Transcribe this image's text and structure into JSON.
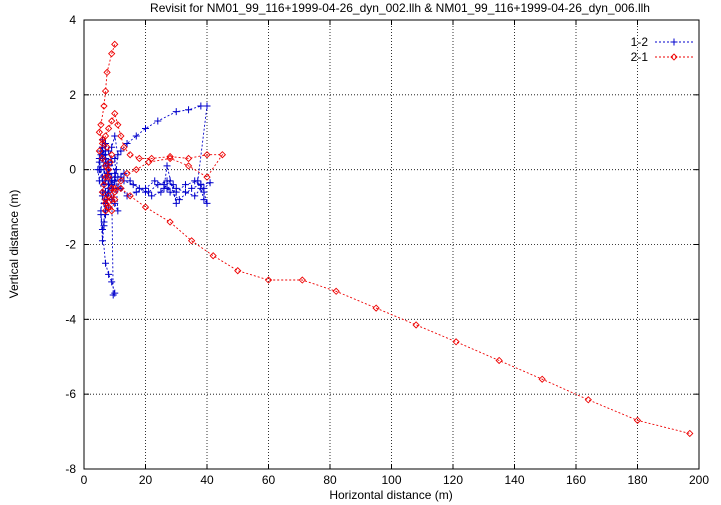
{
  "chart_data": {
    "type": "scatter",
    "title": "Revisit for NM01_99_116+1999-04-26_dyn_002.llh & NM01_99_116+1999-04-26_dyn_006.llh",
    "xlabel": "Horizontal distance (m)",
    "ylabel": "Vertical distance (m)",
    "xlim": [
      0,
      200
    ],
    "ylim": [
      -8,
      4
    ],
    "xticks": [
      0,
      20,
      40,
      60,
      80,
      100,
      120,
      140,
      160,
      180,
      200
    ],
    "yticks": [
      -8,
      -6,
      -4,
      -2,
      0,
      2,
      4
    ],
    "grid": true,
    "legend": "top-right",
    "series": [
      {
        "name": "1-2",
        "color": "#0000cc",
        "marker": "plus",
        "x": [
          5,
          5.5,
          6,
          6.5,
          7,
          7.5,
          8,
          7,
          6.5,
          6,
          5.5,
          7,
          8,
          9,
          10,
          9.5,
          9,
          10,
          11,
          10,
          12,
          14,
          17,
          20,
          24,
          30,
          34,
          38,
          40,
          37,
          33,
          30,
          27,
          29,
          30,
          27,
          26,
          28,
          25,
          22,
          20,
          16,
          13,
          12,
          11,
          9,
          8,
          8.5,
          7,
          6.5,
          6,
          5.5,
          6,
          7,
          8,
          9,
          10,
          11,
          10.5,
          10,
          9.5,
          9,
          8,
          7,
          6,
          5,
          4.5,
          5,
          6,
          7,
          9,
          11,
          13,
          15,
          18,
          21,
          24,
          27,
          30,
          33,
          36,
          38,
          39,
          40,
          39,
          38,
          36,
          39,
          41,
          38,
          35,
          31,
          28,
          26,
          23,
          20,
          17,
          14,
          12,
          10,
          8,
          7.5,
          7,
          6,
          5.5,
          5,
          6,
          7,
          6.5,
          7,
          7.5,
          8,
          7.5,
          7,
          6.5,
          6,
          7,
          8,
          9,
          8,
          7,
          6.5,
          6,
          7,
          8,
          9,
          10,
          9,
          8,
          7,
          6.5,
          6,
          5.5
        ],
        "y": [
          0.2,
          0.0,
          -0.2,
          -0.4,
          -0.6,
          -0.8,
          -1.0,
          -1.2,
          -1.5,
          -1.9,
          -1.2,
          -2.5,
          -2.8,
          -3.0,
          -3.3,
          -3.35,
          -0.5,
          -0.9,
          -1.1,
          0.3,
          0.5,
          0.7,
          0.9,
          1.1,
          1.3,
          1.55,
          1.6,
          1.7,
          1.7,
          -0.3,
          -0.4,
          -0.6,
          -0.5,
          -0.4,
          -0.9,
          0.1,
          -0.5,
          -0.3,
          -0.6,
          -0.7,
          -0.6,
          -0.4,
          -0.3,
          -0.2,
          -0.5,
          -0.8,
          -0.6,
          -0.3,
          -0.9,
          -1.4,
          -1.6,
          -1.1,
          -0.7,
          -0.2,
          0.2,
          0.6,
          0.9,
          0.4,
          0.0,
          -0.3,
          -0.5,
          -0.2,
          0.1,
          0.4,
          0.6,
          0.3,
          0.0,
          -0.3,
          -0.6,
          -0.9,
          -0.4,
          -0.2,
          -0.1,
          -0.3,
          -0.5,
          -0.6,
          -0.4,
          -0.3,
          -0.5,
          -0.6,
          -0.7,
          -0.5,
          -0.8,
          -0.9,
          -0.6,
          -0.4,
          -0.3,
          -0.5,
          -0.35,
          -0.4,
          -0.5,
          -0.8,
          -0.6,
          -0.4,
          -0.3,
          -0.5,
          -0.6,
          -0.7,
          -0.5,
          -0.3,
          -0.1,
          0.2,
          0.5,
          0.8,
          0.4,
          0.0,
          -0.3,
          -0.6,
          -0.9,
          -1.1,
          -0.7,
          -0.4,
          -0.1,
          0.2,
          0.4,
          0.6,
          0.3,
          0.0,
          -0.3,
          -0.5,
          -0.2,
          0.1,
          0.4,
          0.7,
          0.5,
          0.2,
          -0.1,
          -0.4,
          -0.6,
          -0.3,
          0.0,
          0.3,
          0.5
        ]
      },
      {
        "name": "2-1",
        "color": "#ee0000",
        "marker": "diamond",
        "x": [
          10,
          9,
          7.5,
          7,
          6.5,
          5.5,
          5,
          6,
          7.5,
          9,
          8.5,
          8,
          7,
          6.5,
          6,
          7,
          8,
          9,
          10,
          9,
          8,
          7,
          6,
          5,
          6,
          7,
          8,
          9,
          10,
          11,
          12,
          13,
          15,
          18,
          22,
          28,
          34,
          40,
          45,
          40,
          34,
          28,
          21,
          17,
          14,
          12,
          10,
          8,
          7,
          7,
          8,
          9,
          10,
          12,
          15,
          20,
          28,
          35,
          42,
          50,
          60,
          71,
          82,
          95,
          108,
          121,
          135,
          149,
          164,
          180,
          197
        ],
        "y": [
          3.35,
          3.1,
          2.6,
          2.1,
          1.7,
          1.2,
          1.0,
          0.8,
          0.6,
          0.4,
          0.2,
          0.0,
          -0.2,
          -0.4,
          -0.6,
          -0.8,
          -1.0,
          -1.1,
          -0.8,
          -0.5,
          -0.2,
          0.1,
          0.3,
          0.5,
          0.7,
          0.9,
          1.1,
          1.3,
          1.5,
          1.2,
          0.9,
          0.6,
          0.4,
          0.3,
          0.3,
          0.35,
          0.3,
          0.4,
          0.4,
          -0.2,
          0.1,
          0.3,
          0.2,
          0.0,
          -0.1,
          -0.3,
          -0.5,
          -0.7,
          -0.9,
          -1.1,
          -1.0,
          -0.8,
          -0.6,
          -0.5,
          -0.7,
          -1.0,
          -1.4,
          -1.9,
          -2.3,
          -2.7,
          -2.95,
          -2.95,
          -3.25,
          -3.7,
          -4.15,
          -4.6,
          -5.1,
          -5.6,
          -6.15,
          -6.7,
          -7.05
        ]
      }
    ]
  }
}
